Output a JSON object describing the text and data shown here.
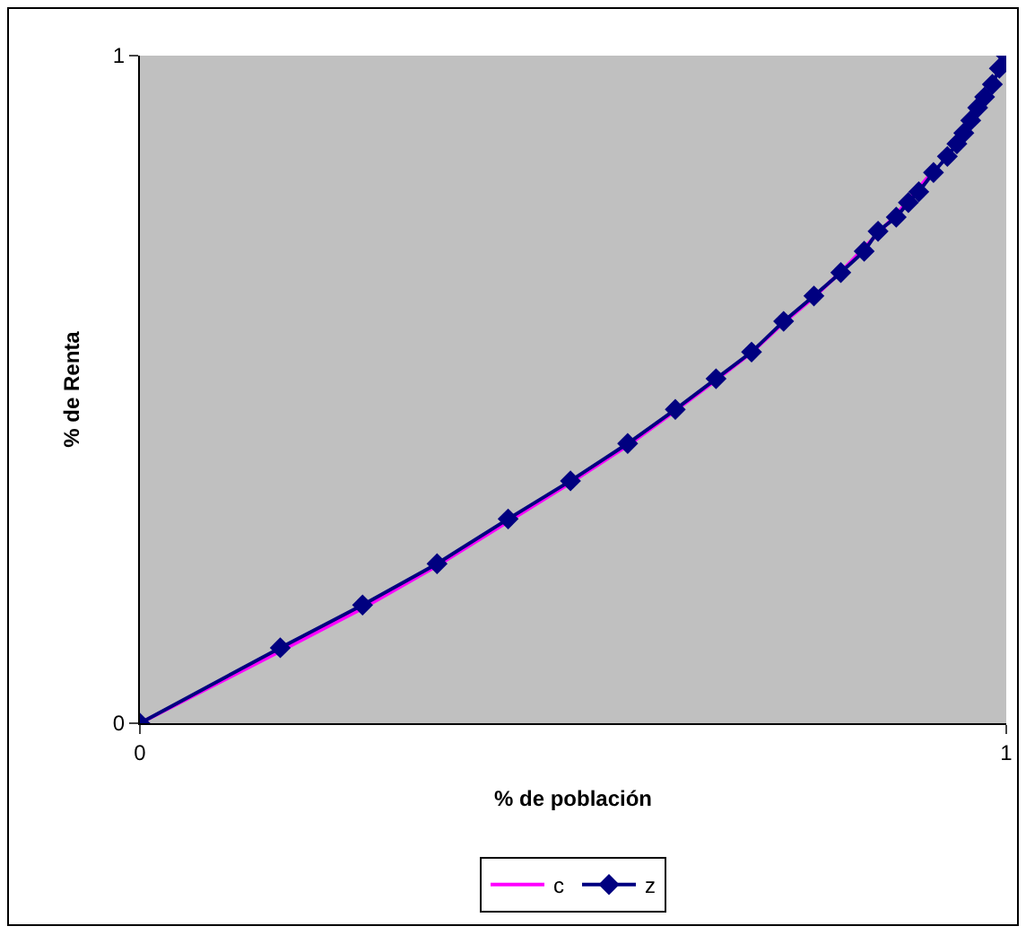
{
  "chart_data": {
    "type": "line",
    "xlabel": "% de población",
    "ylabel": "% de Renta",
    "xlim": [
      0,
      1
    ],
    "ylim": [
      0,
      1
    ],
    "xticks": [
      0,
      1
    ],
    "yticks": [
      0,
      1
    ],
    "legend": "bottom",
    "series": [
      {
        "name": "c",
        "color": "#ff00ff",
        "marker": "none",
        "x": [
          0,
          0.162,
          0.257,
          0.343,
          0.425,
          0.497,
          0.563,
          0.618,
          0.665,
          0.706,
          0.743,
          0.778,
          0.809,
          0.836,
          0.873,
          0.916
        ],
        "values": [
          0,
          0.108,
          0.172,
          0.236,
          0.302,
          0.36,
          0.416,
          0.468,
          0.514,
          0.555,
          0.6,
          0.638,
          0.676,
          null,
          0.762,
          0.828
        ]
      },
      {
        "name": "z",
        "color": "#000080",
        "marker": "diamond",
        "x": [
          0,
          0.162,
          0.257,
          0.343,
          0.425,
          0.497,
          0.563,
          0.618,
          0.665,
          0.706,
          0.743,
          0.778,
          0.809,
          0.836,
          0.852,
          0.873,
          0.887,
          0.899,
          0.916,
          0.932,
          0.943,
          0.951,
          0.959,
          0.967,
          0.975,
          0.984,
          0.992,
          1
        ],
        "values": [
          0,
          0.113,
          0.177,
          0.239,
          0.306,
          0.363,
          0.419,
          0.47,
          0.516,
          0.556,
          0.602,
          0.64,
          0.675,
          0.707,
          0.737,
          0.758,
          0.78,
          0.796,
          0.825,
          0.849,
          0.868,
          0.884,
          0.903,
          0.922,
          0.938,
          0.957,
          0.981,
          1
        ]
      }
    ]
  }
}
